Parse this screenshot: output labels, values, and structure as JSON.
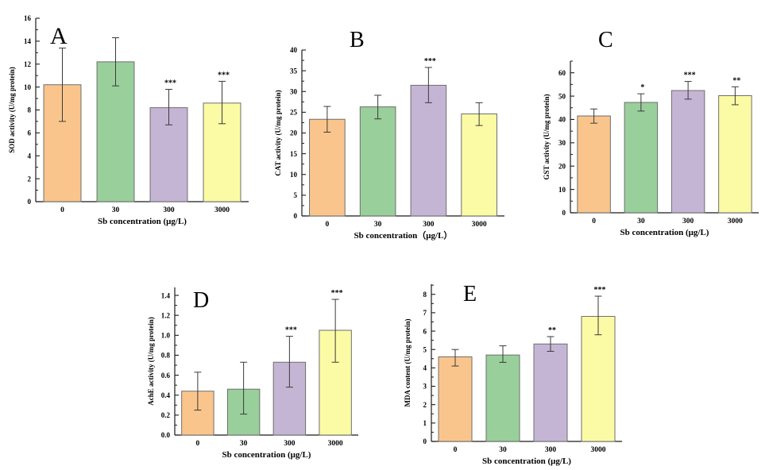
{
  "figure": {
    "background_color": "#ffffff",
    "axis_color": "#1a1a1a",
    "bar_edge_color": "#6e6e6e",
    "error_bar_color": "#3a3a3a",
    "text_color": "#000000",
    "bar_colors": [
      "#FAC58C",
      "#99CF9B",
      "#C5B5D5",
      "#FBFBA5"
    ]
  },
  "chart_data": [
    {
      "type": "bar",
      "panel_label": "A",
      "title": "",
      "xlabel": "Sb concentration (μg/L)",
      "ylabel": "SOD activity (U/mg protein)",
      "categories": [
        "0",
        "30",
        "300",
        "3000"
      ],
      "values": [
        10.2,
        12.2,
        8.2,
        8.6
      ],
      "error_low": [
        7.0,
        10.1,
        6.7,
        6.8
      ],
      "error_high": [
        13.4,
        14.3,
        9.8,
        10.5
      ],
      "significance": [
        "",
        "",
        "***",
        "***"
      ],
      "ylim": [
        0,
        16
      ],
      "ytick_max": 16,
      "ytick_step": 2,
      "ytick_decimals": 0,
      "grid": false,
      "legend": "none"
    },
    {
      "type": "bar",
      "panel_label": "B",
      "title": "",
      "xlabel": "Sb concentration（μg/L）",
      "ylabel": "CAT activity (U/mg protein)",
      "categories": [
        "0",
        "30",
        "300",
        "3000"
      ],
      "values": [
        23.3,
        26.3,
        31.5,
        24.6
      ],
      "error_low": [
        20.2,
        23.4,
        27.3,
        21.8
      ],
      "error_high": [
        26.4,
        29.1,
        35.8,
        27.3
      ],
      "significance": [
        "",
        "",
        "***",
        ""
      ],
      "ylim": [
        0,
        40
      ],
      "ytick_max": 40,
      "ytick_step": 5,
      "ytick_decimals": 0,
      "grid": false,
      "legend": "none"
    },
    {
      "type": "bar",
      "panel_label": "C",
      "title": "",
      "xlabel": "Sb concentration (μg/L)",
      "ylabel": "GST activity (U/mg protein)",
      "categories": [
        "0",
        "30",
        "300",
        "3000"
      ],
      "values": [
        41.5,
        47.3,
        52.4,
        50.2
      ],
      "error_low": [
        38.4,
        43.6,
        48.7,
        46.3
      ],
      "error_high": [
        44.5,
        51.0,
        56.3,
        54.0
      ],
      "significance": [
        "",
        "*",
        "***",
        "**"
      ],
      "ylim": [
        0,
        65
      ],
      "ytick_max": 60,
      "ytick_step": 10,
      "ytick_decimals": 0,
      "grid": false,
      "legend": "none"
    },
    {
      "type": "bar",
      "panel_label": "D",
      "title": "",
      "xlabel": "Sb concentration (μg/L)",
      "ylabel": "AchE activity (U/mg protein)",
      "categories": [
        "0",
        "30",
        "300",
        "3000"
      ],
      "values": [
        0.44,
        0.46,
        0.73,
        1.05
      ],
      "error_low": [
        0.25,
        0.21,
        0.48,
        0.73
      ],
      "error_high": [
        0.63,
        0.73,
        0.99,
        1.36
      ],
      "significance": [
        "",
        "",
        "***",
        "***"
      ],
      "ylim": [
        0,
        1.48
      ],
      "ytick_max": 1.4,
      "ytick_step": 0.2,
      "ytick_decimals": 1,
      "grid": false,
      "legend": "none"
    },
    {
      "type": "bar",
      "panel_label": "E",
      "title": "",
      "xlabel": "Sb concentration (μg/L)",
      "ylabel": "MDA content (U/mg protein)",
      "categories": [
        "0",
        "30",
        "300",
        "3000"
      ],
      "values": [
        4.6,
        4.7,
        5.3,
        6.8
      ],
      "error_low": [
        4.1,
        4.3,
        4.9,
        5.8
      ],
      "error_high": [
        5.0,
        5.2,
        5.7,
        7.9
      ],
      "significance": [
        "",
        "",
        "**",
        "***"
      ],
      "ylim": [
        0,
        8.55
      ],
      "ytick_max": 8,
      "ytick_step": 1,
      "ytick_decimals": 0,
      "grid": false,
      "legend": "none"
    }
  ]
}
